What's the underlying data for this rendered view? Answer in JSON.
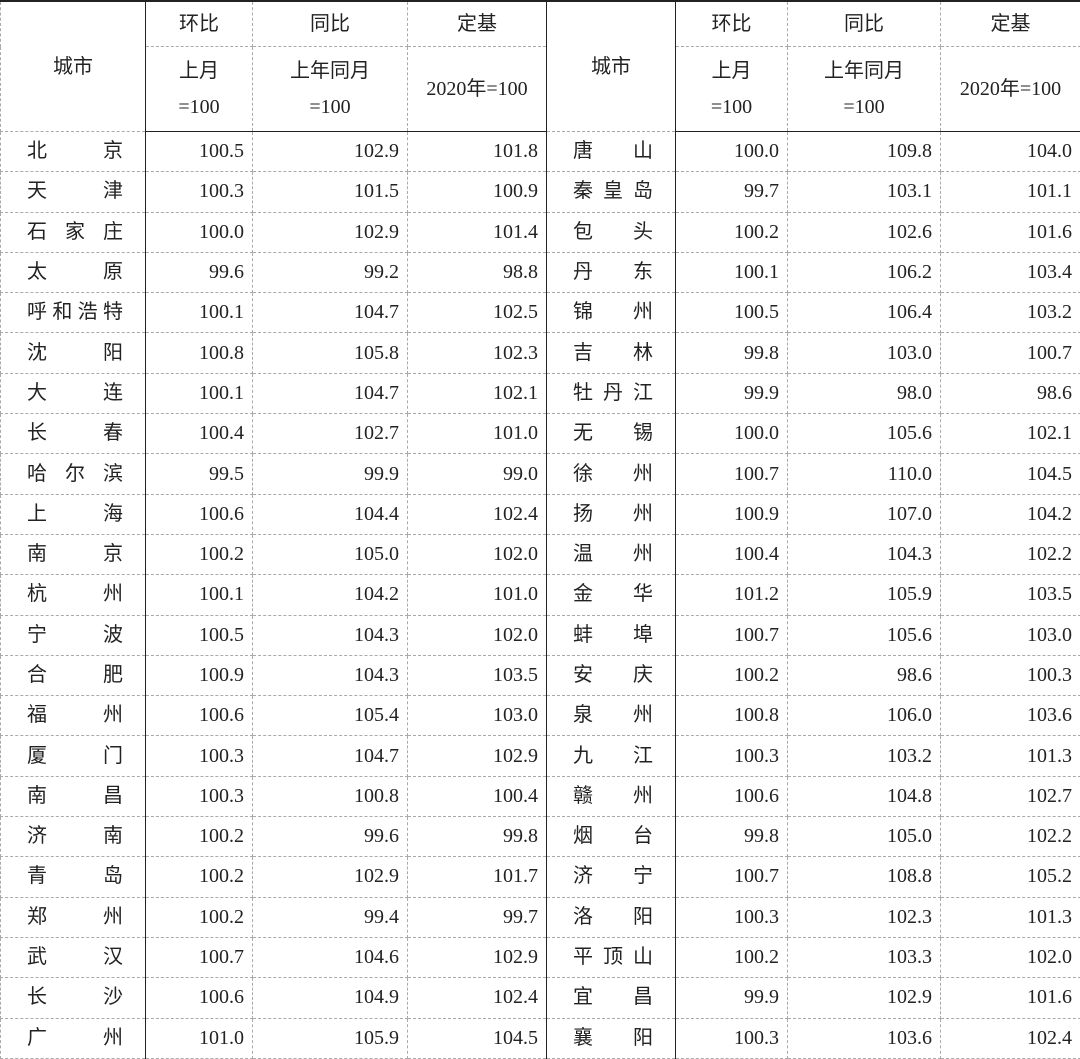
{
  "header": {
    "city": "城市",
    "groups": [
      "环比",
      "同比",
      "定基"
    ],
    "bases": [
      "上月\n=100",
      "上年同月\n=100",
      "2020年=100"
    ]
  },
  "rows": [
    [
      "北京",
      "100.5",
      "102.9",
      "101.8",
      "唐山",
      "100.0",
      "109.8",
      "104.0"
    ],
    [
      "天津",
      "100.3",
      "101.5",
      "100.9",
      "秦皇岛",
      "99.7",
      "103.1",
      "101.1"
    ],
    [
      "石家庄",
      "100.0",
      "102.9",
      "101.4",
      "包头",
      "100.2",
      "102.6",
      "101.6"
    ],
    [
      "太原",
      "99.6",
      "99.2",
      "98.8",
      "丹东",
      "100.1",
      "106.2",
      "103.4"
    ],
    [
      "呼和浩特",
      "100.1",
      "104.7",
      "102.5",
      "锦州",
      "100.5",
      "106.4",
      "103.2"
    ],
    [
      "沈阳",
      "100.8",
      "105.8",
      "102.3",
      "吉林",
      "99.8",
      "103.0",
      "100.7"
    ],
    [
      "大连",
      "100.1",
      "104.7",
      "102.1",
      "牡丹江",
      "99.9",
      "98.0",
      "98.6"
    ],
    [
      "长春",
      "100.4",
      "102.7",
      "101.0",
      "无锡",
      "100.0",
      "105.6",
      "102.1"
    ],
    [
      "哈尔滨",
      "99.5",
      "99.9",
      "99.0",
      "徐州",
      "100.7",
      "110.0",
      "104.5"
    ],
    [
      "上海",
      "100.6",
      "104.4",
      "102.4",
      "扬州",
      "100.9",
      "107.0",
      "104.2"
    ],
    [
      "南京",
      "100.2",
      "105.0",
      "102.0",
      "温州",
      "100.4",
      "104.3",
      "102.2"
    ],
    [
      "杭州",
      "100.1",
      "104.2",
      "101.0",
      "金华",
      "101.2",
      "105.9",
      "103.5"
    ],
    [
      "宁波",
      "100.5",
      "104.3",
      "102.0",
      "蚌埠",
      "100.7",
      "105.6",
      "103.0"
    ],
    [
      "合肥",
      "100.9",
      "104.3",
      "103.5",
      "安庆",
      "100.2",
      "98.6",
      "100.3"
    ],
    [
      "福州",
      "100.6",
      "105.4",
      "103.0",
      "泉州",
      "100.8",
      "106.0",
      "103.6"
    ],
    [
      "厦门",
      "100.3",
      "104.7",
      "102.9",
      "九江",
      "100.3",
      "103.2",
      "101.3"
    ],
    [
      "南昌",
      "100.3",
      "100.8",
      "100.4",
      "赣州",
      "100.6",
      "104.8",
      "102.7"
    ],
    [
      "济南",
      "100.2",
      "99.6",
      "99.8",
      "烟台",
      "99.8",
      "105.0",
      "102.2"
    ],
    [
      "青岛",
      "100.2",
      "102.9",
      "101.7",
      "济宁",
      "100.7",
      "108.8",
      "105.2"
    ],
    [
      "郑州",
      "100.2",
      "99.4",
      "99.7",
      "洛阳",
      "100.3",
      "102.3",
      "101.3"
    ],
    [
      "武汉",
      "100.7",
      "104.6",
      "102.9",
      "平顶山",
      "100.2",
      "103.3",
      "102.0"
    ],
    [
      "长沙",
      "100.6",
      "104.9",
      "102.4",
      "宜昌",
      "99.9",
      "102.9",
      "101.6"
    ],
    [
      "广州",
      "101.0",
      "105.9",
      "104.5",
      "襄阳",
      "100.3",
      "103.6",
      "102.4"
    ]
  ]
}
